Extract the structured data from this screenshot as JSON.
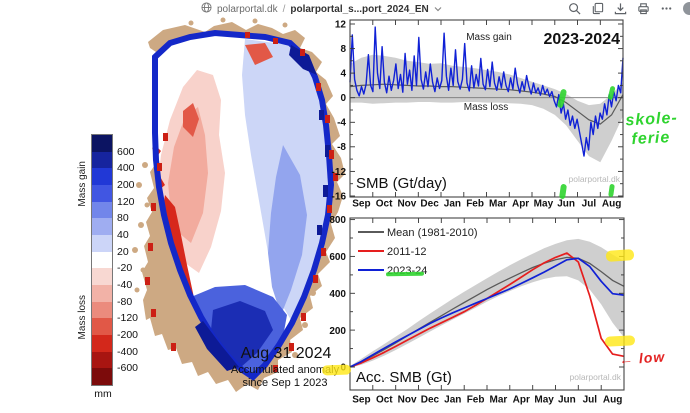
{
  "toolbar": {
    "site": "polarportal.dk",
    "separator": "/",
    "document_name": "polarportal_s...port_2024_EN",
    "icons": [
      "globe",
      "chevron-down",
      "search",
      "copy",
      "download",
      "print",
      "more",
      "avatar"
    ]
  },
  "map_panel": {
    "date_label": "Aug 31 2024",
    "caption_line1": "Accumulated anomaly",
    "caption_line2": "since Sep 1 2023",
    "colorbar": {
      "gain_label": "Mass gain",
      "loss_label": "Mass loss",
      "unit": "mm",
      "tick_labels": [
        "600",
        "400",
        "200",
        "120",
        "80",
        "40",
        "20",
        "-20",
        "-40",
        "-80",
        "-120",
        "-200",
        "-400",
        "-600"
      ],
      "band_colors": [
        "#0c1462",
        "#16249e",
        "#2138d6",
        "#4156e2",
        "#7286ea",
        "#9fadf1",
        "#ccd5f8",
        "#ffffff",
        "#f8d8d2",
        "#f2b2a7",
        "#eb8b7d",
        "#e15847",
        "#d3281b",
        "#a81511",
        "#7c0b0b"
      ]
    }
  },
  "chart_data": [
    {
      "type": "line",
      "title": "2023-2024",
      "label": "SMB (Gt/day)",
      "watermark": "polarportal.dk",
      "annotation_gain": "Mass gain",
      "annotation_loss": "Mass loss",
      "categories": [
        "Sep",
        "Oct",
        "Nov",
        "Dec",
        "Jan",
        "Feb",
        "Mar",
        "Apr",
        "May",
        "Jun",
        "Jul",
        "Aug"
      ],
      "yticks": [
        12,
        8,
        4,
        0,
        -4,
        -8,
        -12,
        -16
      ],
      "ylim": [
        -16.4,
        12.7
      ],
      "grid": false,
      "series": [
        {
          "name": "smb_daily_2023_24",
          "color": "#1021d6",
          "values": [
            2.5,
            10.2,
            3.0,
            1.2,
            0.3,
            1.8,
            0.6,
            2.2,
            7.0,
            2.0,
            1.0,
            11.5,
            4.0,
            1.5,
            8.3,
            2.5,
            0.8,
            3.5,
            1.2,
            2.8,
            5.5,
            1.5,
            3.8,
            0.9,
            7.2,
            2.2,
            4.5,
            1.2,
            6.8,
            2.0,
            9.8,
            3.0,
            1.4,
            4.2,
            1.8,
            5.5,
            2.5,
            1.0,
            3.2,
            1.5,
            2.8,
            10.5,
            3.5,
            1.2,
            4.8,
            2.0,
            7.8,
            2.6,
            1.4,
            3.0,
            8.8,
            2.4,
            1.1,
            5.2,
            1.6,
            3.8,
            1.9,
            6.4,
            2.2,
            1.3,
            4.6,
            1.8,
            5.8,
            2.4,
            1.2,
            3.4,
            1.6,
            4.2,
            2.0,
            1.0,
            3.2,
            1.4,
            4.8,
            2.2,
            0.8,
            2.6,
            1.2,
            3.6,
            1.8,
            0.6,
            2.4,
            0.8,
            1.6,
            0.4,
            2.0,
            0.6,
            1.4,
            0.2,
            1.0,
            -0.5,
            -1.5,
            0.5,
            -2.5,
            -1.0,
            -3.5,
            -2.0,
            -4.5,
            -3.0,
            -5.0,
            -3.5,
            -5.5,
            -7.5,
            -9.5,
            -6.5,
            -8.5,
            -4.0,
            -6.0,
            -3.0,
            -5.0,
            -2.5,
            -3.5,
            -1.0,
            -2.8,
            0.5,
            -1.5,
            1.0,
            -0.5,
            2.0,
            0.8,
            6.5
          ]
        },
        {
          "name": "mean_1981_2010",
          "color": "#5a5a5a",
          "values": [
            1.8,
            2.0,
            2.1,
            2.2,
            2.1,
            2.0,
            1.9,
            1.9,
            1.8,
            1.8,
            1.7,
            1.6,
            1.5,
            1.4,
            1.3,
            1.1,
            0.9,
            0.6,
            0.2,
            -0.8,
            -2.2,
            -3.6,
            -4.3,
            -2.8,
            0.5
          ]
        }
      ],
      "band": {
        "name": "range_1981_2010",
        "color": "#cfcfcf",
        "upper": [
          5.5,
          6.5,
          7.0,
          6.8,
          6.5,
          6.0,
          5.8,
          5.5,
          5.6,
          5.2,
          5.0,
          4.8,
          4.5,
          4.2,
          3.8,
          3.2,
          2.6,
          2.0,
          1.4,
          0.6,
          -0.5,
          -1.2,
          -1.0,
          0.5,
          2.5
        ],
        "lower": [
          -0.8,
          -0.8,
          -1.0,
          -0.9,
          -0.8,
          -0.8,
          -0.7,
          -0.7,
          -0.8,
          -0.8,
          -0.7,
          -0.7,
          -0.8,
          -0.8,
          -0.9,
          -1.0,
          -1.2,
          -1.8,
          -2.8,
          -4.5,
          -7.0,
          -9.5,
          -10.5,
          -7.0,
          -3.0
        ]
      }
    },
    {
      "type": "line",
      "title": "",
      "label": "Acc. SMB (Gt)",
      "watermark": "polarportal.dk",
      "categories": [
        "Sep",
        "Oct",
        "Nov",
        "Dec",
        "Jan",
        "Feb",
        "Mar",
        "Apr",
        "May",
        "Jun",
        "Jul",
        "Aug"
      ],
      "yticks": [
        800,
        600,
        400,
        200,
        0
      ],
      "ylim": [
        -125,
        808
      ],
      "grid": false,
      "legend": [
        {
          "label": "Mean (1981-2010)",
          "color": "#5a5a5a"
        },
        {
          "label": "2011-12",
          "color": "#e61e1e"
        },
        {
          "label": "2023-24",
          "color": "#1021d6"
        }
      ],
      "series": [
        {
          "name": "mean_1981_2010",
          "color": "#5a5a5a",
          "values": [
            0,
            28,
            60,
            95,
            130,
            168,
            205,
            242,
            278,
            315,
            350,
            385,
            420,
            452,
            482,
            512,
            540,
            563,
            582,
            595,
            590,
            562,
            518,
            470,
            438
          ]
        },
        {
          "name": "acc_smb_2011_12",
          "color": "#e61e1e",
          "values": [
            0,
            22,
            50,
            80,
            112,
            145,
            178,
            210,
            240,
            270,
            300,
            335,
            372,
            410,
            448,
            488,
            528,
            565,
            595,
            618,
            570,
            385,
            155,
            70,
            58
          ]
        },
        {
          "name": "acc_smb_2023_24",
          "color": "#1021d6",
          "values": [
            0,
            30,
            66,
            102,
            136,
            170,
            203,
            236,
            266,
            294,
            320,
            346,
            372,
            398,
            424,
            454,
            484,
            515,
            548,
            582,
            590,
            545,
            465,
            398,
            390
          ]
        }
      ],
      "band": {
        "name": "range_1981_2010",
        "color": "#cfcfcf",
        "upper": [
          5,
          45,
          85,
          125,
          165,
          205,
          248,
          290,
          330,
          370,
          408,
          445,
          482,
          518,
          552,
          585,
          615,
          645,
          668,
          688,
          695,
          680,
          650,
          610,
          575
        ],
        "lower": [
          -5,
          12,
          35,
          62,
          92,
          125,
          158,
          192,
          225,
          258,
          290,
          322,
          355,
          385,
          412,
          438,
          460,
          478,
          490,
          492,
          470,
          420,
          340,
          240,
          160
        ]
      }
    }
  ],
  "annotations": {
    "school_holiday_note": {
      "line1": "skole-",
      "line2": "ferie",
      "color": "#2fd42f"
    },
    "low_note": {
      "text": "← low",
      "color": "#e32222"
    },
    "highlight_color": "#ffe714",
    "green_mark_color": "#2fd42f"
  }
}
